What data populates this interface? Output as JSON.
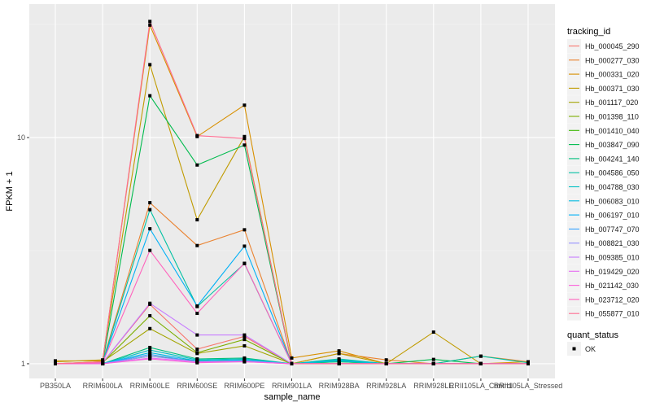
{
  "chart_data": {
    "type": "line",
    "xlabel": "sample_name",
    "ylabel": "FPKM + 1",
    "y_scale": "log10",
    "ylim": [
      0.861,
      38.9
    ],
    "y_ticks": [
      1,
      10
    ],
    "y_tick_labels": [
      "1",
      "10"
    ],
    "grid": true,
    "legend_position": "right",
    "panel_background": "#EBEBEB",
    "categories": [
      "PB350LA",
      "RRIM600LA",
      "RRIM600LE",
      "RRIM600SE",
      "RRIM600PE",
      "RRIM901LA",
      "RRIM928BA",
      "RRIM928LA",
      "RRIM928LE",
      "RRII105LA_Control",
      "RRII105LA_Stressed"
    ],
    "legend_title": "tracking_id",
    "shape_legend": {
      "title": "quant_status",
      "items": [
        "OK"
      ]
    },
    "series": [
      {
        "name": "Hb_000045_290",
        "color": "#F8766D",
        "values": [
          1,
          1.01,
          1.83,
          1.16,
          1.32,
          1,
          1,
          1,
          1,
          1,
          1
        ]
      },
      {
        "name": "Hb_000277_030",
        "color": "#EA8331",
        "values": [
          1,
          1.02,
          5.15,
          3.33,
          3.91,
          1,
          1.11,
          1.04,
          1,
          1.08,
          1.02
        ]
      },
      {
        "name": "Hb_000331_020",
        "color": "#D89000",
        "values": [
          1.03,
          1.03,
          31.4,
          10.1,
          13.9,
          1.06,
          1.14,
          1,
          1,
          1,
          1.02
        ]
      },
      {
        "name": "Hb_000371_030",
        "color": "#C09B00",
        "values": [
          1.02,
          1.04,
          21,
          4.33,
          10.1,
          1,
          1.11,
          1,
          1.38,
          1,
          1
        ]
      },
      {
        "name": "Hb_001117_020",
        "color": "#A3A500",
        "values": [
          1,
          1.02,
          1.43,
          1.11,
          1.2,
          1,
          1,
          1,
          1,
          1,
          1
        ]
      },
      {
        "name": "Hb_001398_110",
        "color": "#7CAE00",
        "values": [
          1,
          1.01,
          1.63,
          1.12,
          1.28,
          1,
          1,
          1,
          1,
          1,
          1
        ]
      },
      {
        "name": "Hb_001410_040",
        "color": "#39B600",
        "values": [
          1,
          1,
          1.08,
          1.03,
          1.04,
          1,
          1.02,
          1,
          1,
          1,
          1
        ]
      },
      {
        "name": "Hb_003847_090",
        "color": "#00BB4E",
        "values": [
          1,
          1.01,
          15.3,
          7.56,
          9.26,
          1,
          1.04,
          1,
          1.045,
          1,
          1
        ]
      },
      {
        "name": "Hb_004241_140",
        "color": "#00BF7D",
        "values": [
          1,
          1,
          1.18,
          1.05,
          1.06,
          1,
          1.02,
          1,
          1,
          1,
          1
        ]
      },
      {
        "name": "Hb_004586_050",
        "color": "#00C1A3",
        "values": [
          1,
          1.01,
          4.8,
          1.79,
          2.77,
          1,
          1.05,
          1,
          1,
          1.08,
          1.01
        ]
      },
      {
        "name": "Hb_004788_030",
        "color": "#00BFC4",
        "values": [
          1,
          1,
          1.15,
          1.04,
          1.05,
          1,
          1.04,
          1,
          1,
          1,
          1
        ]
      },
      {
        "name": "Hb_006083_010",
        "color": "#00BAE0",
        "values": [
          1,
          1,
          1.12,
          1.03,
          1.04,
          1,
          1.03,
          1,
          1,
          1,
          1
        ]
      },
      {
        "name": "Hb_006197_010",
        "color": "#00B0F6",
        "values": [
          1,
          1.01,
          3.95,
          1.8,
          3.31,
          1,
          1,
          1,
          1,
          1,
          1
        ]
      },
      {
        "name": "Hb_007747_070",
        "color": "#35A2FF",
        "values": [
          1,
          1,
          1.1,
          1.02,
          1.03,
          1,
          1,
          1,
          1,
          1,
          1
        ]
      },
      {
        "name": "Hb_008821_030",
        "color": "#9590FF",
        "values": [
          1,
          1,
          1.08,
          1.02,
          1.03,
          1,
          1,
          1,
          1,
          1,
          1
        ]
      },
      {
        "name": "Hb_009385_010",
        "color": "#C77CFF",
        "values": [
          1,
          1.01,
          1.85,
          1.34,
          1.34,
          1,
          1,
          1,
          1,
          1,
          1
        ]
      },
      {
        "name": "Hb_019429_020",
        "color": "#E76BF3",
        "values": [
          1,
          1,
          1.06,
          1.02,
          1.02,
          1,
          1,
          1,
          1,
          1,
          1
        ]
      },
      {
        "name": "Hb_021142_030",
        "color": "#FA62DB",
        "values": [
          1,
          1,
          1.05,
          1.01,
          1.02,
          1,
          1,
          1,
          1,
          1,
          1
        ]
      },
      {
        "name": "Hb_023712_020",
        "color": "#FF62BC",
        "values": [
          1,
          1.01,
          3.17,
          1.67,
          2.78,
          1,
          1,
          1,
          1,
          1,
          1
        ]
      },
      {
        "name": "Hb_055877_010",
        "color": "#FF6C91",
        "values": [
          1,
          1.02,
          32.6,
          10.2,
          9.9,
          1,
          1,
          1,
          1,
          1,
          1
        ]
      }
    ]
  }
}
